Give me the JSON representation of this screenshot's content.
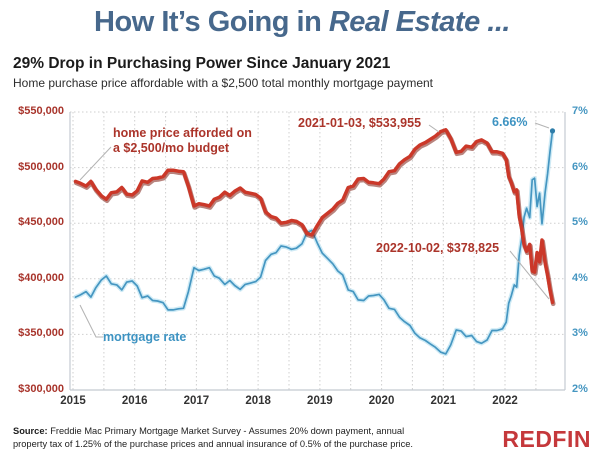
{
  "page": {
    "title_prefix": "How It’s Going in ",
    "title_italic": "Real Estate ...",
    "heading": "29% Drop in Purchasing Power Since January 2021",
    "subheading": "Home purchase price affordable with a $2,500 total monthly mortgage payment",
    "source_label": "Source:",
    "source_text": " Freddie Mac Primary Mortgage Market Survey - Assumes 20% down payment, annual property tax of 1.25% of the purchase prices and annual insurance of 0.5% of the purchase price.",
    "brand": "REDFIN"
  },
  "colors": {
    "title_blue": "#47688c",
    "price_line": "#cb3829",
    "price_line_shadow": "#801f14",
    "rate_line": "#4596c1",
    "rate_line_halo": "#c9e8f4",
    "red_text": "#ab342a",
    "blue_text": "#3d93c2",
    "grid": "#cfcfcf",
    "border": "#c4cad1",
    "callout": "#b3b3b3",
    "logo_red": "#c5383b"
  },
  "chart_data": {
    "type": "line",
    "title": "29% Drop in Purchasing Power Since January 2021",
    "subtitle": "Home purchase price affordable with a $2,500 total monthly mortgage payment",
    "grid": true,
    "xlim": [
      2015,
      2023
    ],
    "left_axis": {
      "range": [
        300000,
        550000
      ],
      "ticks": [
        {
          "label": "$550,000",
          "value": 550000
        },
        {
          "label": "$500,000",
          "value": 500000
        },
        {
          "label": "$450,000",
          "value": 450000
        },
        {
          "label": "$400,000",
          "value": 400000
        },
        {
          "label": "$350,000",
          "value": 350000
        },
        {
          "label": "$300,000",
          "value": 300000
        }
      ]
    },
    "right_axis": {
      "range": [
        2,
        7
      ],
      "ticks": [
        {
          "label": "7%",
          "value": 7
        },
        {
          "label": "6%",
          "value": 6
        },
        {
          "label": "5%",
          "value": 5
        },
        {
          "label": "4%",
          "value": 4
        },
        {
          "label": "3%",
          "value": 3
        },
        {
          "label": "2%",
          "value": 2
        }
      ]
    },
    "year_ticks": [
      {
        "label": "2015",
        "value": 2015
      },
      {
        "label": "2016",
        "value": 2016
      },
      {
        "label": "2017",
        "value": 2017
      },
      {
        "label": "2018",
        "value": 2018
      },
      {
        "label": "2019",
        "value": 2019
      },
      {
        "label": "2020",
        "value": 2020
      },
      {
        "label": "2021",
        "value": 2021
      },
      {
        "label": "2022",
        "value": 2022
      }
    ],
    "x": [
      2015.04,
      2015.12,
      2015.21,
      2015.29,
      2015.37,
      2015.46,
      2015.54,
      2015.62,
      2015.71,
      2015.79,
      2015.87,
      2015.96,
      2016.04,
      2016.12,
      2016.21,
      2016.29,
      2016.37,
      2016.46,
      2016.54,
      2016.62,
      2016.71,
      2016.79,
      2016.87,
      2016.96,
      2017.04,
      2017.12,
      2017.21,
      2017.29,
      2017.37,
      2017.46,
      2017.54,
      2017.62,
      2017.71,
      2017.79,
      2017.87,
      2017.96,
      2018.04,
      2018.12,
      2018.21,
      2018.29,
      2018.37,
      2018.46,
      2018.54,
      2018.62,
      2018.71,
      2018.79,
      2018.87,
      2018.96,
      2019.04,
      2019.12,
      2019.21,
      2019.29,
      2019.37,
      2019.46,
      2019.54,
      2019.62,
      2019.71,
      2019.79,
      2019.87,
      2019.96,
      2020.04,
      2020.12,
      2020.21,
      2020.29,
      2020.37,
      2020.46,
      2020.54,
      2020.62,
      2020.71,
      2020.79,
      2020.87,
      2020.96,
      2021.04,
      2021.12,
      2021.21,
      2021.29,
      2021.37,
      2021.46,
      2021.54,
      2021.62,
      2021.71,
      2021.79,
      2021.87,
      2021.96,
      2022.02,
      2022.06,
      2022.1,
      2022.15,
      2022.19,
      2022.23,
      2022.27,
      2022.31,
      2022.35,
      2022.4,
      2022.44,
      2022.48,
      2022.52,
      2022.56,
      2022.6,
      2022.65,
      2022.69,
      2022.73,
      2022.77
    ],
    "series": [
      {
        "name": "home price afforded on a $2,500/mo budget",
        "axis": "left",
        "color": "#cb3829",
        "values": [
          487625,
          485908,
          483354,
          487625,
          480389,
          474523,
          471600,
          477439,
          478278,
          482077,
          476190,
          475356,
          479122,
          488056,
          486764,
          490208,
          490638,
          491941,
          497627,
          497627,
          496745,
          496304,
          483354,
          465498,
          467531,
          466718,
          465498,
          471627,
          473277,
          477856,
          474940,
          478700,
          481655,
          477856,
          477023,
          475773,
          472452,
          460259,
          455910,
          454719,
          450069,
          450844,
          452394,
          451619,
          448523,
          440901,
          439404,
          448137,
          455116,
          458689,
          462677,
          467937,
          470801,
          482077,
          483354,
          489777,
          490208,
          486764,
          486334,
          485483,
          489777,
          496304,
          497186,
          503385,
          506978,
          510145,
          516534,
          520241,
          522572,
          525392,
          528224,
          532491,
          533955,
          526328,
          513788,
          514702,
          519310,
          518380,
          523512,
          524922,
          522102,
          514245,
          514245,
          512873,
          507427,
          492375,
          486764,
          478278,
          479967,
          456704,
          445062,
          430542,
          424744,
          430906,
          407031,
          406003,
          423664,
          415220,
          434912,
          414869,
          403367,
          390325,
          378825
        ]
      },
      {
        "name": "mortgage rate",
        "axis": "right",
        "color": "#4596c1",
        "values": [
          3.67,
          3.71,
          3.77,
          3.67,
          3.84,
          3.98,
          4.05,
          3.91,
          3.89,
          3.8,
          3.94,
          3.96,
          3.87,
          3.66,
          3.69,
          3.61,
          3.6,
          3.57,
          3.44,
          3.44,
          3.46,
          3.47,
          3.77,
          4.2,
          4.15,
          4.17,
          4.2,
          4.05,
          4.01,
          3.9,
          3.97,
          3.88,
          3.81,
          3.9,
          3.92,
          3.95,
          4.03,
          4.33,
          4.44,
          4.47,
          4.59,
          4.57,
          4.53,
          4.55,
          4.63,
          4.83,
          4.87,
          4.64,
          4.46,
          4.37,
          4.27,
          4.14,
          4.07,
          3.8,
          3.77,
          3.62,
          3.61,
          3.69,
          3.7,
          3.72,
          3.62,
          3.47,
          3.45,
          3.31,
          3.23,
          3.16,
          3.02,
          2.94,
          2.89,
          2.83,
          2.77,
          2.68,
          2.65,
          2.81,
          3.08,
          3.06,
          2.96,
          2.98,
          2.87,
          2.84,
          2.9,
          3.07,
          3.07,
          3.1,
          3.22,
          3.56,
          3.69,
          3.89,
          3.85,
          4.42,
          4.72,
          5.11,
          5.27,
          5.1,
          5.78,
          5.81,
          5.3,
          5.54,
          4.99,
          5.55,
          5.89,
          6.29,
          6.66
        ]
      }
    ],
    "annotations": {
      "price_label_line1": "home price afforded on",
      "price_label_line2": "a $2,500/mo budget",
      "rate_label": "mortgage rate",
      "peak": "2021-01-03, $533,955",
      "last_rate": "6.66%",
      "last_price": "2022-10-02, $378,825"
    }
  }
}
